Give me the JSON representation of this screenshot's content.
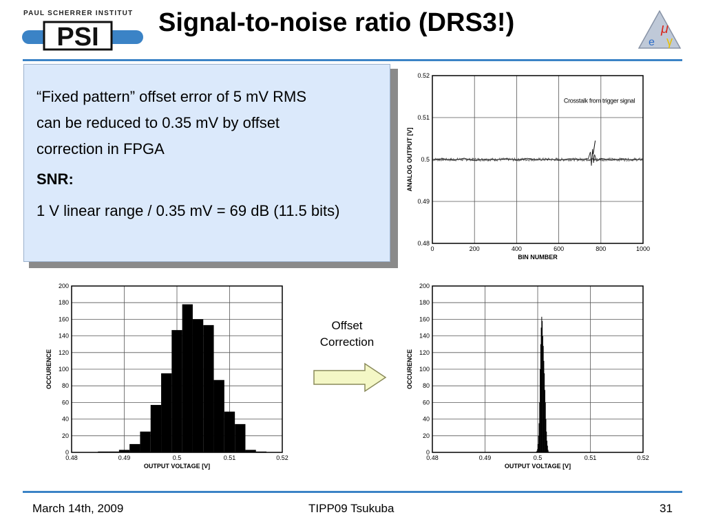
{
  "header": {
    "institute": "PAUL SCHERRER INSTITUT",
    "logo_letters": "PSI",
    "title": "Signal-to-noise ratio (DRS3!)"
  },
  "textbox": {
    "line1": "“Fixed pattern” offset error of 5 mV RMS",
    "line2": "can be reduced to 0.35 mV by offset",
    "line3": "correction in FPGA",
    "snr_label": "SNR:",
    "snr_calc": "1 V linear range / 0.35 mV = 69 dB (11.5 bits)"
  },
  "offset_correction": {
    "line1": "Offset",
    "line2": "Correction"
  },
  "footer": {
    "date": "March 14th, 2009",
    "venue": "TIPP09 Tsukuba",
    "page": "31"
  },
  "colors": {
    "accent_rule": "#3b83c6",
    "textbox_bg": "#dbe9fb",
    "arrow_fill": "#f4f7c6"
  },
  "chart_data": [
    {
      "type": "line",
      "xlabel": "BIN NUMBER",
      "ylabel": "ANALOG OUTPUT [V]",
      "xlim": [
        0,
        1000
      ],
      "ylim": [
        0.48,
        0.52
      ],
      "xticks": [
        0,
        200,
        400,
        600,
        800,
        1000
      ],
      "xtick_labels": [
        "0",
        "200",
        "400",
        "600",
        "800",
        "1000"
      ],
      "yticks": [
        0.48,
        0.49,
        0.5,
        0.51,
        0.52
      ],
      "ytick_labels": [
        "0.48",
        "0.49",
        "0.5",
        "0.51",
        "0.52"
      ],
      "grid": true,
      "baseline": 0.5,
      "noise_amplitude": 0.0004,
      "annotation": {
        "text": "Crosstalk from trigger signal",
        "x": 760,
        "y": 0.5
      },
      "x": [
        0,
        50,
        100,
        150,
        200,
        250,
        300,
        350,
        400,
        450,
        500,
        550,
        600,
        650,
        700,
        740,
        750,
        755,
        760,
        765,
        770,
        780,
        800,
        850,
        900,
        950,
        1000
      ],
      "values": [
        0.5,
        0.5002,
        0.4998,
        0.5003,
        0.4997,
        0.5001,
        0.4999,
        0.5002,
        0.4998,
        0.5003,
        0.4999,
        0.5001,
        0.4998,
        0.5002,
        0.5,
        0.5002,
        0.5018,
        0.4985,
        0.5025,
        0.4992,
        0.5012,
        0.4996,
        0.5003,
        0.4998,
        0.5002,
        0.4999,
        0.5
      ]
    },
    {
      "type": "bar",
      "xlabel": "OUTPUT VOLTAGE [V]",
      "ylabel": "OCCURENCE",
      "xlim": [
        0.48,
        0.52
      ],
      "ylim": [
        0,
        200
      ],
      "xticks": [
        0.48,
        0.49,
        0.5,
        0.51,
        0.52
      ],
      "xtick_labels": [
        "0.48",
        "0.49",
        "0.5",
        "0.51",
        "0.52"
      ],
      "yticks": [
        0,
        20,
        40,
        60,
        80,
        100,
        120,
        140,
        160,
        180,
        200
      ],
      "ytick_labels": [
        "0",
        "20",
        "40",
        "60",
        "80",
        "100",
        "120",
        "140",
        "160",
        "180",
        "200"
      ],
      "grid": true,
      "bin_width": 0.002,
      "bin_starts": [
        0.485,
        0.487,
        0.489,
        0.491,
        0.493,
        0.495,
        0.497,
        0.499,
        0.501,
        0.503,
        0.505,
        0.507,
        0.509,
        0.511,
        0.513,
        0.515
      ],
      "values": [
        1,
        1,
        3,
        10,
        25,
        57,
        95,
        147,
        178,
        160,
        153,
        87,
        49,
        34,
        3,
        1
      ]
    },
    {
      "type": "bar",
      "xlabel": "OUTPUT VOLTAGE [V]",
      "ylabel": "OCCURENCE",
      "xlim": [
        0.48,
        0.52
      ],
      "ylim": [
        0,
        200
      ],
      "xticks": [
        0.48,
        0.49,
        0.5,
        0.51,
        0.52
      ],
      "xtick_labels": [
        "0.48",
        "0.49",
        "0.5",
        "0.51",
        "0.52"
      ],
      "yticks": [
        0,
        20,
        40,
        60,
        80,
        100,
        120,
        140,
        160,
        180,
        200
      ],
      "ytick_labels": [
        "0",
        "20",
        "40",
        "60",
        "80",
        "100",
        "120",
        "140",
        "160",
        "180",
        "200"
      ],
      "grid": true,
      "bin_width": 0.0001,
      "bin_starts": [
        0.4997,
        0.4998,
        0.4999,
        0.5,
        0.5001,
        0.5002,
        0.5003,
        0.5004,
        0.5005,
        0.5006,
        0.5007,
        0.5008,
        0.5009,
        0.501,
        0.5011,
        0.5012,
        0.5013,
        0.5014,
        0.5015,
        0.5016,
        0.5017,
        0.5018,
        0.5019,
        0.502
      ],
      "values": [
        1,
        2,
        4,
        10,
        20,
        35,
        60,
        100,
        130,
        150,
        163,
        158,
        140,
        128,
        110,
        95,
        75,
        60,
        40,
        25,
        14,
        8,
        3,
        1
      ]
    }
  ]
}
